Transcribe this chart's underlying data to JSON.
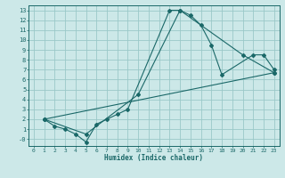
{
  "xlabel": "Humidex (Indice chaleur)",
  "background_color": "#cce8e8",
  "grid_color": "#9ac8c8",
  "line_color": "#1a6868",
  "xlim": [
    -0.5,
    23.5
  ],
  "ylim": [
    -0.7,
    13.5
  ],
  "xticks": [
    0,
    1,
    2,
    3,
    4,
    5,
    6,
    7,
    8,
    9,
    10,
    11,
    12,
    13,
    14,
    15,
    16,
    17,
    18,
    19,
    20,
    21,
    22,
    23
  ],
  "yticks": [
    0,
    1,
    2,
    3,
    4,
    5,
    6,
    7,
    8,
    9,
    10,
    11,
    12,
    13
  ],
  "ytick_labels": [
    "-0",
    "1",
    "2",
    "3",
    "4",
    "5",
    "6",
    "7",
    "8",
    "9",
    "10",
    "11",
    "12",
    "13"
  ],
  "series": [
    {
      "x": [
        1,
        2,
        3,
        4,
        5,
        6,
        7,
        8,
        9,
        13,
        14,
        15,
        16,
        17,
        18,
        21,
        22,
        23
      ],
      "y": [
        2,
        1.3,
        1.0,
        0.5,
        -0.3,
        1.5,
        2.0,
        2.5,
        3.0,
        13.0,
        13.0,
        12.5,
        11.5,
        9.5,
        6.5,
        8.5,
        8.5,
        7.0
      ]
    },
    {
      "x": [
        1,
        5,
        10,
        14,
        20,
        23
      ],
      "y": [
        2,
        0.5,
        4.5,
        13.0,
        8.5,
        6.7
      ]
    },
    {
      "x": [
        1,
        23
      ],
      "y": [
        2,
        6.7
      ]
    }
  ]
}
